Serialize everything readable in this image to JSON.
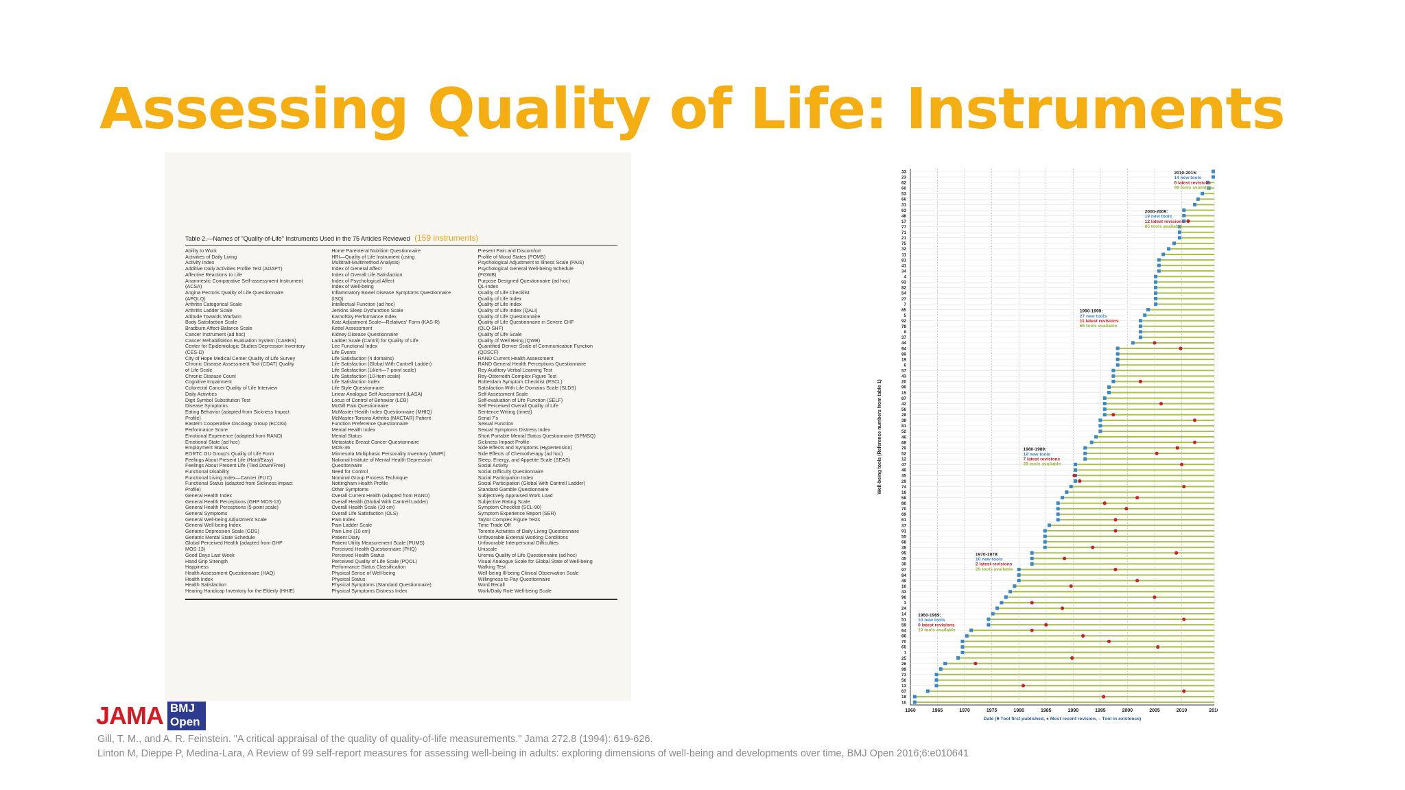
{
  "slide": {
    "title": "Assessing Quality of Life: Instruments",
    "title_color": "#f5ae12"
  },
  "table": {
    "caption": "Table 2.—Names of \"Quality-of-Life\" Instruments Used in the 75 Articles Reviewed",
    "count_label": "(159 instruments)",
    "columns": [
      [
        "Ability to Work",
        "Activities of Daily Living",
        "Activity Index",
        "Additive Daily Activities Profile Test (ADAPT)",
        "Affective Reactions to Life",
        "Anamnestic Comparative Self-assessment Instrument",
        "  (ACSA)",
        "Angina Pectoris Quality of Life Questionnaire",
        "  (APQLQ)",
        "Arthritis Categorical Scale",
        "Arthritis Ladder Scale",
        "Attitude Towards Warfarin",
        "Body Satisfaction Scale",
        "Bradburn Affect-Balance Scale",
        "Cancer Instrument (ad hoc)",
        "Cancer Rehabilitation Evaluation System (CARES)",
        "Center for Epidemiologic Studies Depression Inventory",
        "  (CES-D)",
        "City of Hope Medical Center Quality of Life Survey",
        "Chronic Disease Assessment Tool (CDAT) Quality",
        "  of Life Scale",
        "Chronic Disease Count",
        "Cognitive Impairment",
        "Colorectal Cancer Quality of Life Interview",
        "Daily Activities",
        "Digit Symbol Substitution Test",
        "Disease Symptoms",
        "Eating Behavior (adapted from Sickness Impact",
        "  Profile)",
        "Eastern Cooperative Oncology Group (ECOG)",
        "  Performance Score",
        "Emotional Experience (adapted from RAND)",
        "Emotional State (ad hoc)",
        "Employment Status",
        "EORTC GU Group's Quality of Life Form",
        "Feelings About Present Life (Hard/Easy)",
        "Feelings About Present Life (Tied Down/Free)",
        "Functional Disability",
        "Functional Living Index—Cancer (FLIC)",
        "Functional Status (adapted from Sickness Impact",
        "  Profile)",
        "General Health Index",
        "General Health Perceptions (GHP MOS-13)",
        "General Health Perceptions (5-point scale)",
        "General Symptoms",
        "General Well-being Adjustment Scale",
        "General Well-being Index",
        "Geriatric Depression Scale (GDS)",
        "Geriatric Mental State Schedule",
        "Global Perceived Health (adapted from GHP",
        "  MOS-13)",
        "Good Days Last Week",
        "Hand Grip Strength",
        "Happiness",
        "Health Assessment Questionnaire (HAQ)",
        "Health Index",
        "Health Satisfaction",
        "Hearing Handicap Inventory for the Elderly (HHIE)"
      ],
      [
        "Home Parenteral Nutrition Questionnaire",
        "HRI—Quality of Life Instrument (using",
        "  Multitrait-Multimethod Analysis)",
        "Index of General Affect",
        "Index of Overall Life Satisfaction",
        "Index of Psychological Affect",
        "Index of Well-being",
        "Inflammatory Bowel Disease Symptoms Questionnaire",
        "  (ISQ)",
        "Intellectual Function (ad hoc)",
        "Jenkins Sleep Dysfunction Scale",
        "Karnofsky Performance Index",
        "Katz Adjustment Scale—Relatives' Form (KAS-R)",
        "Kettel Assessment",
        "Kidney Disease Questionnaire",
        "Ladder Scale (Cantril) for Quality of Life",
        "Lee Functional Index",
        "Life Events",
        "Life Satisfaction (4 domains)",
        "Life Satisfaction (Global With Cantrell Ladder)",
        "Life Satisfaction (Likert—7-point scale)",
        "Life Satisfaction (10-item scale)",
        "Life Satisfaction Index",
        "Life Style Questionnaire",
        "Linear Analogue Self Assessment (LASA)",
        "Locus of Control of Behavior (LCB)",
        "McGill Pain Questionnaire",
        "McMaster Health Index Questionnaire (MHIQ)",
        "McMaster-Toronto Arthritis (MACTAR) Patient",
        "  Function Preference Questionnaire",
        "Mental Health Index",
        "Mental Status",
        "Metastatic Breast Cancer Questionnaire",
        "MOS-36",
        "Minnesota Multiphasic Personality Inventory (MMPI)",
        "National Institute of Mental Health Depression",
        "  Questionnaire",
        "Need for Control",
        "Nominal Group Process Technique",
        "Nottingham Health Profile",
        "Other Symptoms",
        "Overall Current Health (adapted from RAND)",
        "Overall Health (Global With Cantrell Ladder)",
        "Overall Health Scale (10 cm)",
        "Overall Life Satisfaction (OLS)",
        "Pain Index",
        "Pain Ladder Scale",
        "Pain Line (10 cm)",
        "Patient Diary",
        "Patient Utility Measurement Scale (PUMS)",
        "Perceived Health Questionnaire (PHQ)",
        "Perceived Health Status",
        "Perceived Quality of Life Scale (PQOL)",
        "Performance Status Classification",
        "Physical Sense of Well-being",
        "Physical Status",
        "Physical Symptoms (Standard Questionnaire)",
        "Physical Symptoms Distress Index"
      ],
      [
        "Present Pain and Discomfort",
        "Profile of Mood States (POMS)",
        "Psychological Adjustment to Illness Scale (PAIS)",
        "Psychological General Well-being Schedule",
        "  (PGWB)",
        "Purpose Designed Questionnaire (ad hoc)",
        "QL-Index",
        "Quality of Life Checklist",
        "Quality of Life Index",
        "Quality of Life Index",
        "Quality of Life Index (QALI)",
        "Quality of Life Questionnaire",
        "Quality of Life Questionnaire in Severe CHF",
        "  (QLQ-SHF)",
        "Quality of Life Scale",
        "Quality of Well Being (QWB)",
        "Quantified Denver Scale of Communication Function",
        "  (QDSCF)",
        "RAND Current Health Assessment",
        "RAND General Health Perceptions Questionnaire",
        "Rey Auditory Verbal Learning Test",
        "Rey-Osterreith Complex Figure Test",
        "Rotterdam Symptom Checklist (RSCL)",
        "Satisfaction With Life Domains Scale (SLDS)",
        "Self Assessment Scale",
        "Self-evaluation of Life Function (SELF)",
        "Self Perceived Overall Quality of Life",
        "Sentence Writing (timed)",
        "Serial 7's",
        "Sexual Function",
        "Sexual Symptoms Distress Index",
        "Short Portable Mental Status Questionnaire (SPMSQ)",
        "Sickness Impact Profile",
        "Side Effects and Symptoms (Hypertension)",
        "Side Effects of Chemotherapy (ad hoc)",
        "Sleep, Energy, and Appetite Scale (SEAS)",
        "Social Activity",
        "Social Difficulty Questionnaire",
        "Social Participation Index",
        "Social Participation (Global With Cantrell Ladder)",
        "Standard Gamble Questionnaire",
        "Subjectively Appraised Work Load",
        "Subjective Rating Scale",
        "Symptom Checklist (SCL-90)",
        "Symptom Experience Report (SER)",
        "Taylor Complex Figure Tests",
        "Time Trade Off",
        "Toronto Activities of Daily Living Questionnaire",
        "Unfavorable External Working Conditions",
        "Unfavorable Interpersonal Difficulties",
        "Uniscale",
        "Uremia Quality of Life Questionnaire (ad hoc)",
        "Visual Analogue Scale for Global State of Well-being",
        "Walking Test",
        "Well-being Ill-being Clinical Observation Scale",
        "Willingness to Pay Questionnaire",
        "Word Recall",
        "Work/Daily Role Well-being Scale"
      ]
    ]
  },
  "chart_data": {
    "type": "scatter",
    "xlabel": "Date (■ Tool first published, ● Most recent revision, – Tool in existence)",
    "ylabel": "Well-being tools (Reference numbers from table 1)",
    "xlim": [
      1960,
      2016
    ],
    "x_ticks": [
      "1960",
      "1965",
      "1970",
      "1975",
      "1980",
      "1985",
      "1990",
      "1995",
      "2000",
      "2005",
      "2010",
      "2016"
    ],
    "colors": {
      "published": "#3a88c9",
      "revision": "#c8242b",
      "existence": "#a9c34a",
      "grid": "#b5b5b5"
    },
    "tools": [
      {
        "ref": "33",
        "first": 2015.8,
        "rev": null
      },
      {
        "ref": "23",
        "first": 2015.8,
        "rev": null
      },
      {
        "ref": "62",
        "first": 2014.8,
        "rev": null
      },
      {
        "ref": "60",
        "first": 2015.0,
        "rev": null
      },
      {
        "ref": "53",
        "first": 2013.8,
        "rev": null
      },
      {
        "ref": "66",
        "first": 2013.0,
        "rev": null
      },
      {
        "ref": "31",
        "first": 2012.4,
        "rev": null
      },
      {
        "ref": "63",
        "first": 2010.4,
        "rev": null
      },
      {
        "ref": "48",
        "first": 2010.4,
        "rev": null
      },
      {
        "ref": "17",
        "first": 2010.4,
        "rev": 2011.2
      },
      {
        "ref": "77",
        "first": 2009.6,
        "rev": null
      },
      {
        "ref": "71",
        "first": 2009.6,
        "rev": null
      },
      {
        "ref": "21",
        "first": 2009.6,
        "rev": null
      },
      {
        "ref": "75",
        "first": 2008.6,
        "rev": null
      },
      {
        "ref": "32",
        "first": 2007.6,
        "rev": null
      },
      {
        "ref": "11",
        "first": 2006.6,
        "rev": null
      },
      {
        "ref": "81",
        "first": 2005.8,
        "rev": null
      },
      {
        "ref": "41",
        "first": 2005.8,
        "rev": null
      },
      {
        "ref": "34",
        "first": 2005.8,
        "rev": null
      },
      {
        "ref": "4",
        "first": 2005.2,
        "rev": null
      },
      {
        "ref": "93",
        "first": 2005.2,
        "rev": null
      },
      {
        "ref": "82",
        "first": 2005.2,
        "rev": null
      },
      {
        "ref": "54",
        "first": 2005.2,
        "rev": null
      },
      {
        "ref": "27",
        "first": 2005.2,
        "rev": null
      },
      {
        "ref": "7",
        "first": 2005.2,
        "rev": null
      },
      {
        "ref": "85",
        "first": 2003.8,
        "rev": null
      },
      {
        "ref": "5",
        "first": 2003.2,
        "rev": null
      },
      {
        "ref": "92",
        "first": 2002.4,
        "rev": null
      },
      {
        "ref": "78",
        "first": 2002.4,
        "rev": null
      },
      {
        "ref": "8",
        "first": 2002.4,
        "rev": null
      },
      {
        "ref": "37",
        "first": 2002.4,
        "rev": null
      },
      {
        "ref": "44",
        "first": 2001.0,
        "rev": 2005.0
      },
      {
        "ref": "94",
        "first": 1998.2,
        "rev": 2009.8
      },
      {
        "ref": "89",
        "first": 1998.2,
        "rev": null
      },
      {
        "ref": "19",
        "first": 1998.2,
        "rev": null
      },
      {
        "ref": "6",
        "first": 1998.2,
        "rev": null
      },
      {
        "ref": "57",
        "first": 1997.4,
        "rev": null
      },
      {
        "ref": "43",
        "first": 1997.4,
        "rev": null
      },
      {
        "ref": "20",
        "first": 1997.4,
        "rev": 2002.4
      },
      {
        "ref": "90",
        "first": 1996.6,
        "rev": null
      },
      {
        "ref": "15",
        "first": 1996.6,
        "rev": null
      },
      {
        "ref": "87",
        "first": 1995.8,
        "rev": null
      },
      {
        "ref": "42",
        "first": 1995.8,
        "rev": 2006.2
      },
      {
        "ref": "56",
        "first": 1995.8,
        "rev": null
      },
      {
        "ref": "28",
        "first": 1995.8,
        "rev": 1997.4
      },
      {
        "ref": "38",
        "first": 1995.0,
        "rev": 2012.4
      },
      {
        "ref": "81",
        "first": 1995.0,
        "rev": null
      },
      {
        "ref": "52",
        "first": 1995.0,
        "rev": null
      },
      {
        "ref": "46",
        "first": 1994.2,
        "rev": null
      },
      {
        "ref": "68",
        "first": 1993.4,
        "rev": 2012.4
      },
      {
        "ref": "79",
        "first": 1992.2,
        "rev": 2009.2
      },
      {
        "ref": "52",
        "first": 1992.2,
        "rev": 2005.4
      },
      {
        "ref": "12",
        "first": 1992.2,
        "rev": null
      },
      {
        "ref": "47",
        "first": 1990.4,
        "rev": 2010.0
      },
      {
        "ref": "40",
        "first": 1990.4,
        "rev": null
      },
      {
        "ref": "35",
        "first": 1990.4,
        "rev": 1990.2
      },
      {
        "ref": "29",
        "first": 1990.4,
        "rev": 1991.2
      },
      {
        "ref": "74",
        "first": 1989.6,
        "rev": 2010.4
      },
      {
        "ref": "16",
        "first": 1988.8,
        "rev": null
      },
      {
        "ref": "58",
        "first": 1988.0,
        "rev": 2001.8
      },
      {
        "ref": "80",
        "first": 1987.2,
        "rev": 1995.8
      },
      {
        "ref": "70",
        "first": 1987.2,
        "rev": 1999.8
      },
      {
        "ref": "69",
        "first": 1987.2,
        "rev": null
      },
      {
        "ref": "61",
        "first": 1987.2,
        "rev": 1997.8
      },
      {
        "ref": "37",
        "first": 1985.6,
        "rev": null
      },
      {
        "ref": "91",
        "first": 1984.8,
        "rev": 1997.8
      },
      {
        "ref": "55",
        "first": 1984.8,
        "rev": null
      },
      {
        "ref": "68",
        "first": 1984.8,
        "rev": null
      },
      {
        "ref": "38",
        "first": 1984.8,
        "rev": 1993.6
      },
      {
        "ref": "95",
        "first": 1982.4,
        "rev": 2009.0
      },
      {
        "ref": "45",
        "first": 1982.4,
        "rev": 1988.4
      },
      {
        "ref": "30",
        "first": 1982.4,
        "rev": null
      },
      {
        "ref": "97",
        "first": 1980.0,
        "rev": 1997.8
      },
      {
        "ref": "84",
        "first": 1980.0,
        "rev": null
      },
      {
        "ref": "49",
        "first": 1980.0,
        "rev": 2001.8
      },
      {
        "ref": "10",
        "first": 1979.2,
        "rev": 1989.6
      },
      {
        "ref": "43",
        "first": 1978.4,
        "rev": null
      },
      {
        "ref": "96",
        "first": 1977.6,
        "rev": 2005.0
      },
      {
        "ref": "3",
        "first": 1976.8,
        "rev": 1982.4
      },
      {
        "ref": "24",
        "first": 1976.0,
        "rev": 1988.0
      },
      {
        "ref": "14",
        "first": 1975.2,
        "rev": null
      },
      {
        "ref": "51",
        "first": 1974.4,
        "rev": 2010.4
      },
      {
        "ref": "59",
        "first": 1974.4,
        "rev": 1985.0
      },
      {
        "ref": "64",
        "first": 1971.2,
        "rev": 1982.4
      },
      {
        "ref": "86",
        "first": 1970.4,
        "rev": 1991.8
      },
      {
        "ref": "70",
        "first": 1969.6,
        "rev": 1996.6
      },
      {
        "ref": "65",
        "first": 1969.6,
        "rev": 2005.6
      },
      {
        "ref": "1",
        "first": 1969.6,
        "rev": null
      },
      {
        "ref": "25",
        "first": 1968.8,
        "rev": 1989.8
      },
      {
        "ref": "26",
        "first": 1966.4,
        "rev": 1972.0
      },
      {
        "ref": "99",
        "first": 1965.6,
        "rev": null
      },
      {
        "ref": "73",
        "first": 1964.8,
        "rev": null
      },
      {
        "ref": "50",
        "first": 1964.8,
        "rev": null
      },
      {
        "ref": "13",
        "first": 1964.8,
        "rev": 1980.8
      },
      {
        "ref": "67",
        "first": 1963.2,
        "rev": 2010.4
      },
      {
        "ref": "18",
        "first": 1960.8,
        "rev": 1995.6
      },
      {
        "ref": "10",
        "first": 1960.8,
        "rev": null
      }
    ],
    "annotations": [
      {
        "title": "2010-2015:",
        "new": "14 new tools",
        "rev": "6 latest revisions",
        "avail": "99 tools available",
        "x": 2008.6,
        "row": 0
      },
      {
        "title": "2000-2009:",
        "new": "19 new tools",
        "rev": "12 latest revisions",
        "avail": "85 tools available",
        "x": 2003.2,
        "row": 7
      },
      {
        "title": "1990-1999:",
        "new": "27 new tools",
        "rev": "11 latest revisions",
        "avail": "66 tools available",
        "x": 1991.2,
        "row": 25
      },
      {
        "title": "1980-1989:",
        "new": "19 new tools",
        "rev": "7 latest revisions",
        "avail": "39 tools available",
        "x": 1980.8,
        "row": 50
      },
      {
        "title": "1970-1979:",
        "new": "10 new tools",
        "rev": "2 latest revisions",
        "avail": "20 tools available",
        "x": 1972.0,
        "row": 69
      },
      {
        "title": "1960-1969:",
        "new": "10 new tools",
        "rev": "0 latest revisions",
        "avail": "10 tools available",
        "x": 1961.4,
        "row": 80
      }
    ]
  },
  "logos": {
    "jama": "JAMA",
    "bmj_line1": "BMJ",
    "bmj_line2": "Open"
  },
  "references": [
    "Gill, T. M., and A. R. Feinstein. \"A critical appraisal of the quality of quality-of-life measurements.\" Jama 272.8 (1994): 619-626.",
    "Linton M, Dieppe P, Medina-Lara, A Review of 99 self-report measures for assessing well-being in adults: exploring dimensions of well-being and developments over time, BMJ Open 2016;6:e010641"
  ]
}
